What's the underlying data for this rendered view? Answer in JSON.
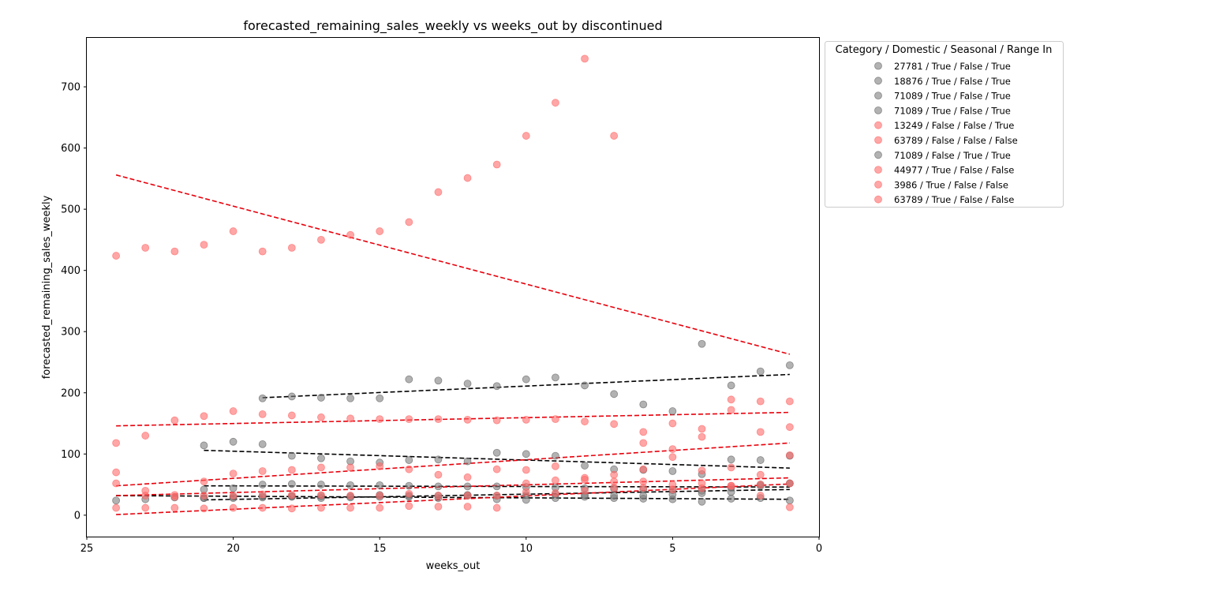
{
  "chart_data": {
    "type": "scatter",
    "title": "forecasted_remaining_sales_weekly vs weeks_out by discontinued",
    "xlabel": "weeks_out",
    "ylabel": "forecasted_remaining_sales_weekly",
    "xlim": [
      25,
      0
    ],
    "ylim": [
      -35,
      780
    ],
    "x_inverted": true,
    "xticks": [
      25,
      20,
      15,
      10,
      5,
      0
    ],
    "yticks": [
      0,
      100,
      200,
      300,
      400,
      500,
      600,
      700
    ],
    "grid": false,
    "legend_title": "Category / Domestic / Seasonal / Range In",
    "legend_position": "outside-top-right",
    "colors": {
      "discontinued_true": "#e8000b",
      "discontinued_false": "#000000",
      "point_true": "#ff6b6b",
      "point_false": "#7f7f7f"
    },
    "series": [
      {
        "name": "27781 / True / False / True",
        "discontinued": false,
        "x": [
          19,
          18,
          17,
          16,
          15,
          14,
          13,
          12,
          11,
          10,
          9,
          8,
          7,
          6,
          5,
          4,
          3,
          2,
          1
        ],
        "y": [
          191,
          194,
          192,
          191,
          191,
          222,
          220,
          215,
          211,
          222,
          225,
          212,
          198,
          181,
          170,
          280,
          212,
          235,
          245
        ],
        "trend": {
          "x": [
            19,
            1
          ],
          "y": [
            192,
            230
          ]
        }
      },
      {
        "name": "18876 / True / False / True",
        "discontinued": false,
        "x": [
          21,
          20,
          19,
          18,
          17,
          16,
          15,
          14,
          13,
          12,
          11,
          10,
          9,
          8,
          7,
          6,
          5,
          4,
          3,
          2,
          1
        ],
        "y": [
          114,
          120,
          116,
          97,
          93,
          88,
          86,
          90,
          91,
          88,
          102,
          100,
          97,
          81,
          75,
          74,
          72,
          67,
          91,
          90,
          97
        ],
        "trend": {
          "x": [
            21,
            1
          ],
          "y": [
            106,
            77
          ]
        }
      },
      {
        "name": "71089 / True / False / True",
        "discontinued": false,
        "x": [
          21,
          20,
          19,
          18,
          17,
          16,
          15,
          14,
          13,
          12,
          11,
          10,
          9,
          8,
          7,
          6,
          5,
          4,
          3,
          2,
          1
        ],
        "y": [
          42,
          44,
          50,
          51,
          50,
          49,
          49,
          48,
          47,
          47,
          47,
          46,
          45,
          44,
          43,
          42,
          41,
          40,
          45,
          48,
          52
        ],
        "trend": {
          "x": [
            21,
            1
          ],
          "y": [
            48,
            46
          ]
        }
      },
      {
        "name": "71089 / True / False / True",
        "discontinued": false,
        "x": [
          24,
          23,
          22,
          21,
          20,
          19,
          18,
          17,
          16,
          15,
          14,
          13,
          12,
          11,
          10,
          9,
          8,
          7,
          6,
          5,
          4,
          3,
          2,
          1
        ],
        "y": [
          24,
          26,
          29,
          28,
          28,
          29,
          30,
          28,
          29,
          30,
          30,
          28,
          32,
          26,
          25,
          28,
          30,
          28,
          27,
          26,
          22,
          27,
          28,
          24
        ],
        "trend": {
          "x": [
            24,
            1
          ],
          "y": [
            32,
            26
          ]
        }
      },
      {
        "name": "13249 / False / False / True",
        "discontinued": true,
        "x": [
          24,
          23,
          22,
          21,
          20,
          19,
          18,
          17,
          16,
          15,
          14,
          13,
          12,
          11,
          10,
          9,
          8,
          7,
          6,
          5,
          4,
          3,
          2,
          1
        ],
        "y": [
          118,
          130,
          155,
          162,
          170,
          165,
          163,
          160,
          158,
          157,
          157,
          157,
          156,
          155,
          156,
          157,
          153,
          149,
          136,
          150,
          141,
          189,
          186,
          186
        ],
        "trend": {
          "x": [
            24,
            1
          ],
          "y": [
            146,
            168
          ]
        }
      },
      {
        "name": "63789 / False / False / False",
        "discontinued": true,
        "x": [
          24,
          23,
          22,
          21,
          20,
          19,
          18,
          17,
          16,
          15,
          14,
          13,
          12,
          11,
          10,
          9,
          8,
          7,
          6,
          5,
          4,
          3,
          2,
          1
        ],
        "y": [
          424,
          437,
          431,
          442,
          464,
          431,
          437,
          450,
          458,
          464,
          479,
          528,
          551,
          573,
          620,
          674,
          746,
          620,
          118,
          108,
          128,
          172,
          136,
          144
        ],
        "trend": {
          "x": [
            24,
            1
          ],
          "y": [
            556,
            263
          ]
        }
      },
      {
        "name": "71089 / False / True / True",
        "discontinued": false,
        "x": [
          21,
          20,
          19,
          18,
          17,
          16,
          15,
          14,
          13,
          12,
          11,
          10,
          9,
          8,
          7,
          6,
          5,
          4,
          3,
          2,
          1
        ],
        "y": [
          28,
          30,
          31,
          31,
          31,
          31,
          33,
          32,
          32,
          33,
          32,
          33,
          34,
          33,
          32,
          32,
          34,
          36,
          38,
          50,
          52
        ],
        "trend": {
          "x": [
            21,
            1
          ],
          "y": [
            25,
            42
          ]
        }
      },
      {
        "name": "44977 / True / False / False",
        "discontinued": true,
        "x": [
          24,
          23,
          22,
          21,
          20,
          19,
          18,
          17,
          16,
          15,
          14,
          13,
          12,
          11,
          10,
          9,
          8,
          7,
          6,
          5,
          4,
          3,
          2,
          1
        ],
        "y": [
          70,
          40,
          30,
          55,
          68,
          72,
          74,
          78,
          78,
          80,
          75,
          66,
          62,
          75,
          74,
          80,
          61,
          66,
          75,
          95,
          73,
          78,
          66,
          98
        ],
        "trend": {
          "x": [
            24,
            1
          ],
          "y": [
            48,
            118
          ]
        }
      },
      {
        "name": "3986 / True / False / False",
        "discontinued": true,
        "x": [
          24,
          23,
          22,
          21,
          20,
          19,
          18,
          17,
          16,
          15,
          14,
          13,
          12,
          11,
          10,
          9,
          8,
          7,
          6,
          5,
          4,
          3,
          2,
          1
        ],
        "y": [
          52,
          32,
          33,
          32,
          32,
          34,
          33,
          33,
          32,
          32,
          35,
          32,
          32,
          32,
          52,
          57,
          58,
          55,
          55,
          50,
          52,
          48,
          50,
          52
        ],
        "trend": {
          "x": [
            24,
            1
          ],
          "y": [
            32,
            61
          ]
        }
      },
      {
        "name": "63789 / True / False / False",
        "discontinued": true,
        "x": [
          24,
          23,
          22,
          21,
          20,
          19,
          18,
          17,
          16,
          15,
          14,
          13,
          12,
          11,
          10,
          9,
          8,
          7,
          6,
          5,
          4,
          3,
          2,
          1
        ],
        "y": [
          12,
          12,
          12,
          11,
          12,
          12,
          11,
          12,
          12,
          12,
          15,
          14,
          14,
          12,
          38,
          36,
          40,
          45,
          45,
          42,
          44,
          48,
          32,
          13
        ],
        "trend": {
          "x": [
            24,
            1
          ],
          "y": [
            1,
            51
          ]
        }
      }
    ]
  }
}
